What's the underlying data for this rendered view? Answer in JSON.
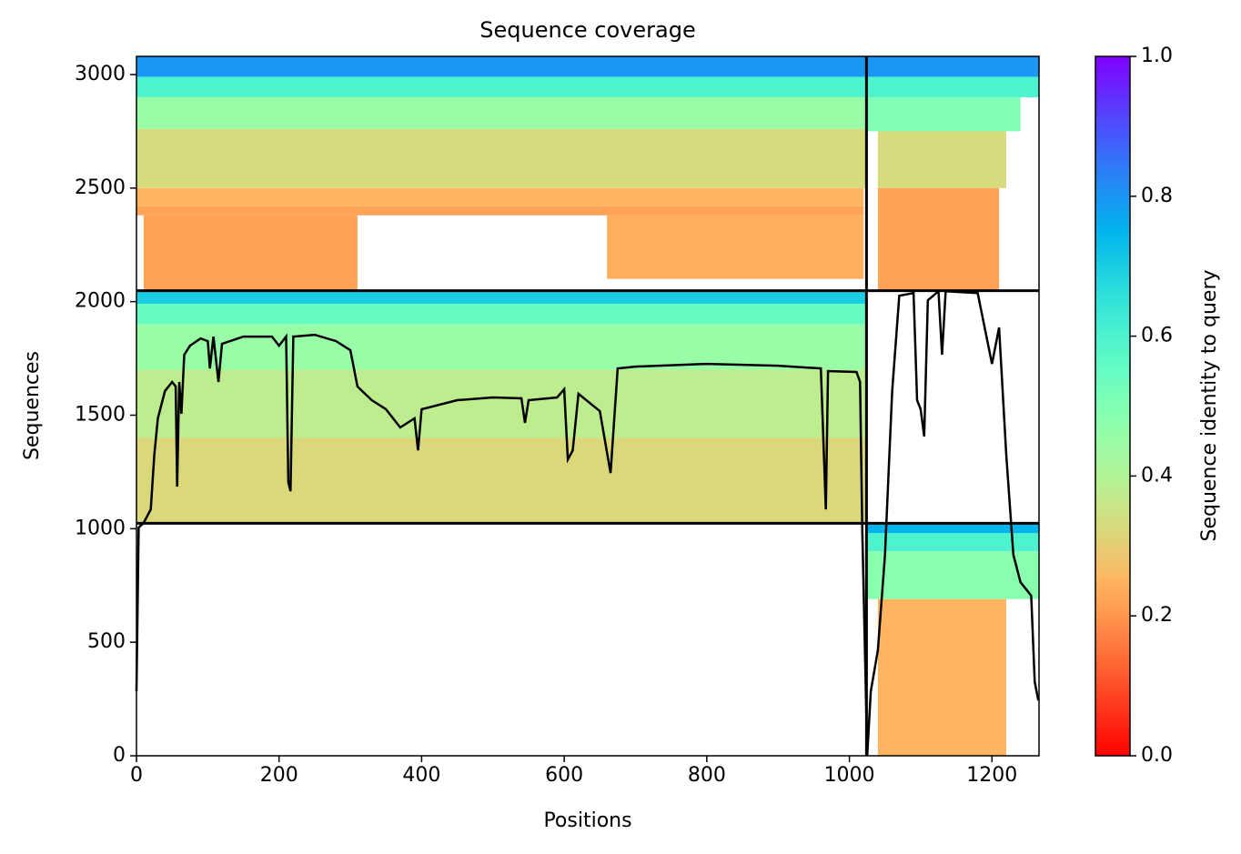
{
  "chart_data": {
    "type": "coverage",
    "title": "Sequence coverage",
    "x_label": "Positions",
    "y_label": "Sequences",
    "colorbar_label": "Sequence identity to query",
    "colormap": "rainbow_r",
    "xlim": [
      0,
      1266
    ],
    "ylim": [
      0,
      3080
    ],
    "xticks": [
      0,
      200,
      400,
      600,
      800,
      1000,
      1200
    ],
    "yticks": [
      0,
      500,
      1000,
      1500,
      2000,
      2500,
      3000
    ],
    "clim": [
      0,
      1
    ],
    "cticks": [
      {
        "value": 0,
        "label": "0.0"
      },
      {
        "value": 0.2,
        "label": "0.2"
      },
      {
        "value": 0.4,
        "label": "0.4"
      },
      {
        "value": 0.6,
        "label": "0.6"
      },
      {
        "value": 0.8,
        "label": "0.8"
      },
      {
        "value": 1,
        "label": "1.0"
      }
    ],
    "blocks": [
      {
        "x": [
          0,
          1024
        ],
        "rows": [
          2990,
          3080
        ],
        "identity": 0.8
      },
      {
        "x": [
          0,
          1024
        ],
        "rows": [
          2900,
          2990
        ],
        "identity": 0.6
      },
      {
        "x": [
          0,
          1024
        ],
        "rows": [
          2760,
          2900
        ],
        "identity": 0.45
      },
      {
        "x": [
          0,
          1024
        ],
        "rows": [
          2500,
          2760
        ],
        "identity": 0.33
      },
      {
        "x": [
          0,
          1020
        ],
        "rows": [
          2420,
          2500
        ],
        "identity": 0.25
      },
      {
        "x": [
          0,
          1020
        ],
        "rows": [
          2380,
          2420
        ],
        "identity": 0.22
      },
      {
        "x": [
          10,
          310
        ],
        "rows": [
          2050,
          2380
        ],
        "identity": 0.22
      },
      {
        "x": [
          660,
          1020
        ],
        "rows": [
          2100,
          2380
        ],
        "identity": 0.24
      },
      {
        "x": [
          1024,
          1266
        ],
        "rows": [
          2990,
          3080
        ],
        "identity": 0.8
      },
      {
        "x": [
          1024,
          1266
        ],
        "rows": [
          2900,
          2990
        ],
        "identity": 0.6
      },
      {
        "x": [
          1024,
          1240
        ],
        "rows": [
          2750,
          2900
        ],
        "identity": 0.5
      },
      {
        "x": [
          1040,
          1220
        ],
        "rows": [
          2500,
          2750
        ],
        "identity": 0.33
      },
      {
        "x": [
          1040,
          1210
        ],
        "rows": [
          2050,
          2500
        ],
        "identity": 0.22
      },
      {
        "x": [
          0,
          1024
        ],
        "rows": [
          1990,
          2048
        ],
        "identity": 0.7
      },
      {
        "x": [
          0,
          1024
        ],
        "rows": [
          1900,
          1990
        ],
        "identity": 0.55
      },
      {
        "x": [
          0,
          1024
        ],
        "rows": [
          1700,
          1900
        ],
        "identity": 0.45
      },
      {
        "x": [
          0,
          1024
        ],
        "rows": [
          1400,
          1700
        ],
        "identity": 0.38
      },
      {
        "x": [
          0,
          1024
        ],
        "rows": [
          1024,
          1400
        ],
        "identity": 0.32
      },
      {
        "x": [
          1024,
          1266
        ],
        "rows": [
          980,
          1024
        ],
        "identity": 0.75
      },
      {
        "x": [
          1024,
          1266
        ],
        "rows": [
          900,
          980
        ],
        "identity": 0.6
      },
      {
        "x": [
          1024,
          1266
        ],
        "rows": [
          690,
          900
        ],
        "identity": 0.48
      },
      {
        "x": [
          1040,
          1220
        ],
        "rows": [
          0,
          690
        ],
        "identity": 0.25
      }
    ],
    "chain_boundaries": {
      "positions": [
        1024
      ],
      "sequences": [
        1024,
        2048
      ]
    },
    "coverage": {
      "color": "#000000",
      "x": [
        0,
        3,
        10,
        20,
        25,
        30,
        40,
        50,
        55,
        57,
        60,
        63,
        67,
        75,
        90,
        100,
        103,
        108,
        115,
        120,
        150,
        190,
        200,
        210,
        213,
        216,
        220,
        250,
        280,
        300,
        310,
        330,
        350,
        370,
        390,
        395,
        400,
        450,
        500,
        540,
        545,
        550,
        590,
        600,
        605,
        612,
        620,
        650,
        665,
        675,
        700,
        800,
        900,
        960,
        967,
        970,
        1010,
        1015,
        1018,
        1025,
        1030,
        1040,
        1050,
        1060,
        1070,
        1090,
        1095,
        1100,
        1105,
        1110,
        1125,
        1130,
        1135,
        1180,
        1200,
        1210,
        1220,
        1230,
        1240,
        1255,
        1260,
        1265
      ],
      "values": [
        284,
        1005,
        1025,
        1085,
        1325,
        1486,
        1606,
        1646,
        1626,
        1185,
        1646,
        1506,
        1766,
        1806,
        1838,
        1826,
        1706,
        1846,
        1646,
        1814,
        1846,
        1846,
        1806,
        1846,
        1205,
        1165,
        1846,
        1854,
        1826,
        1786,
        1626,
        1566,
        1526,
        1446,
        1486,
        1345,
        1526,
        1566,
        1578,
        1574,
        1466,
        1566,
        1578,
        1614,
        1305,
        1345,
        1594,
        1518,
        1245,
        1706,
        1714,
        1726,
        1718,
        1706,
        1085,
        1694,
        1690,
        1646,
        1005,
        4,
        284,
        465,
        885,
        1606,
        2026,
        2038,
        1566,
        1526,
        1406,
        2006,
        2046,
        1766,
        2046,
        2038,
        1726,
        1886,
        1325,
        885,
        765,
        705,
        325,
        244
      ]
    }
  }
}
